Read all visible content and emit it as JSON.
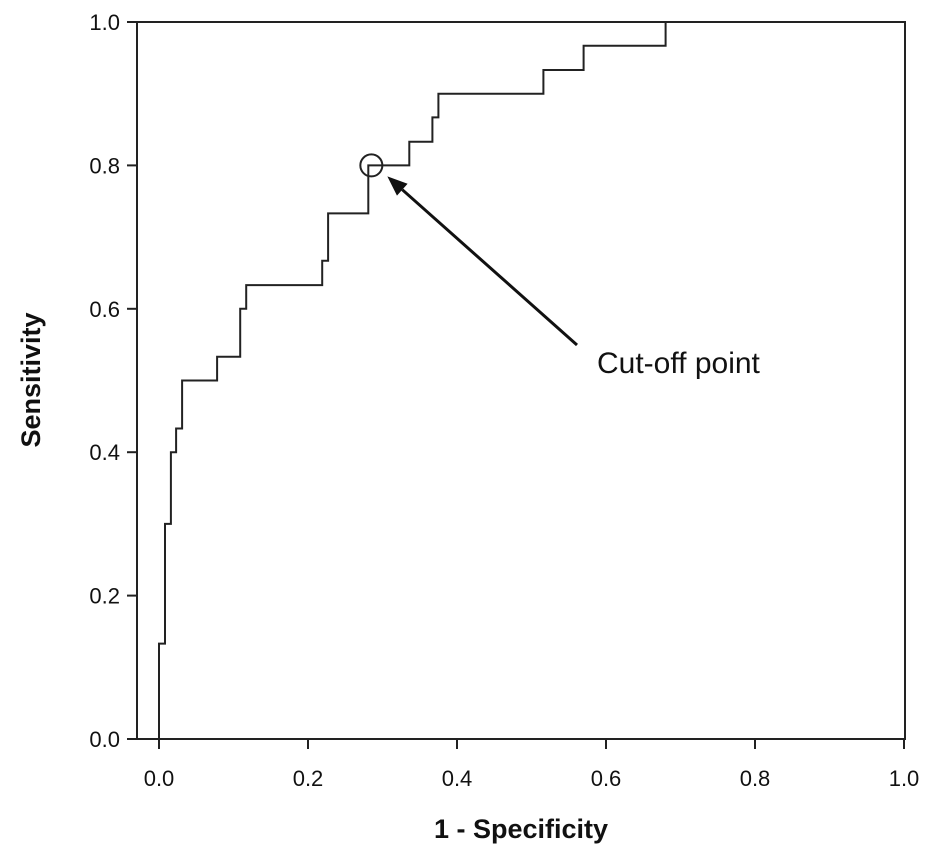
{
  "chart_data": {
    "type": "line",
    "step": true,
    "xlabel": "1 - Specificity",
    "ylabel": "Sensitivity",
    "xlim": [
      0.0,
      1.0
    ],
    "ylim": [
      0.0,
      1.0
    ],
    "xticks": [
      "0.0",
      "0.2",
      "0.4",
      "0.6",
      "0.8",
      "1.0"
    ],
    "yticks": [
      "0.0",
      "0.2",
      "0.4",
      "0.6",
      "0.8",
      "1.0"
    ],
    "grid": false,
    "legend": "none",
    "series": [
      {
        "color": "#222222",
        "x": [
          0.0,
          0.0,
          0.008,
          0.008,
          0.016,
          0.016,
          0.023,
          0.023,
          0.031,
          0.031,
          0.047,
          0.047,
          0.078,
          0.078,
          0.109,
          0.109,
          0.117,
          0.117,
          0.125,
          0.125,
          0.219,
          0.219,
          0.227,
          0.227,
          0.281,
          0.281,
          0.289,
          0.289,
          0.297,
          0.297,
          0.336,
          0.336,
          0.367,
          0.367,
          0.375,
          0.375,
          0.383,
          0.383,
          0.516,
          0.516,
          0.57,
          0.57,
          0.68,
          0.68,
          1.0
        ],
        "y": [
          0.0,
          0.133,
          0.133,
          0.3,
          0.3,
          0.4,
          0.4,
          0.433,
          0.433,
          0.5,
          0.5,
          0.5,
          0.5,
          0.533,
          0.533,
          0.6,
          0.6,
          0.633,
          0.633,
          0.633,
          0.633,
          0.667,
          0.667,
          0.733,
          0.733,
          0.8,
          0.8,
          0.8,
          0.8,
          0.8,
          0.8,
          0.833,
          0.833,
          0.867,
          0.867,
          0.9,
          0.9,
          0.9,
          0.9,
          0.933,
          0.933,
          0.967,
          0.967,
          1.0,
          1.0
        ]
      }
    ],
    "annotations": [
      {
        "text": "Cut-off point",
        "marker": "open-circle",
        "x": 0.281,
        "y": 0.8
      }
    ]
  }
}
